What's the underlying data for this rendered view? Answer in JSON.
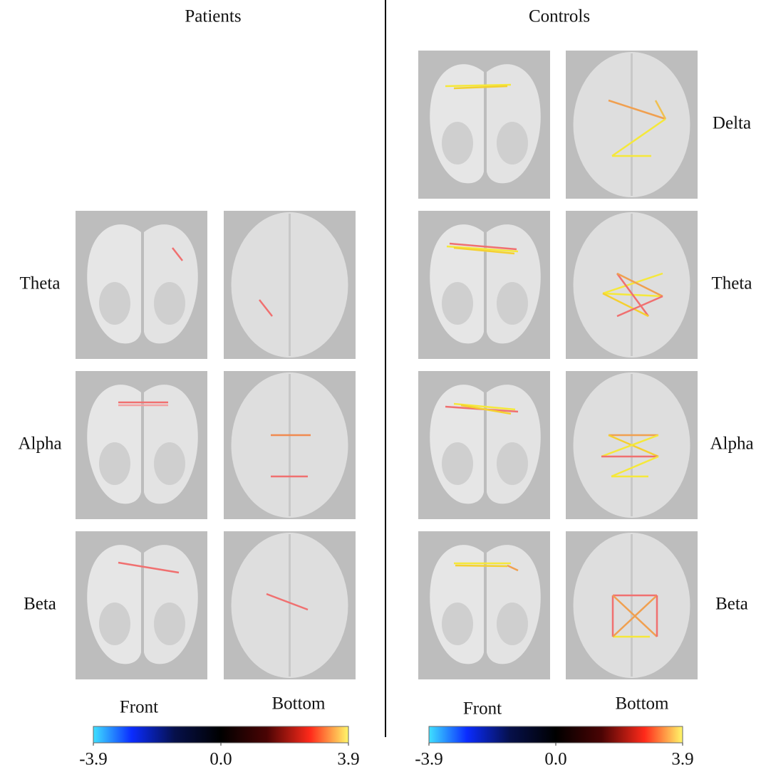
{
  "columns": [
    {
      "title": "Patients",
      "rows": [
        "Theta",
        "Alpha",
        "Beta"
      ],
      "views": [
        "Front",
        "Bottom"
      ],
      "colorbar": {
        "ticks": [
          -3.9,
          {
            "value": 0,
            "label": "0.0"
          },
          3.9
        ]
      }
    },
    {
      "title": "Controls",
      "rows": [
        "Delta",
        "Theta",
        "Alpha",
        "Beta"
      ],
      "views": [
        "Front",
        "Bottom"
      ],
      "colorbar": {
        "ticks": [
          -3.9,
          {
            "value": 0,
            "label": "0.0"
          },
          3.9
        ]
      }
    }
  ]
}
